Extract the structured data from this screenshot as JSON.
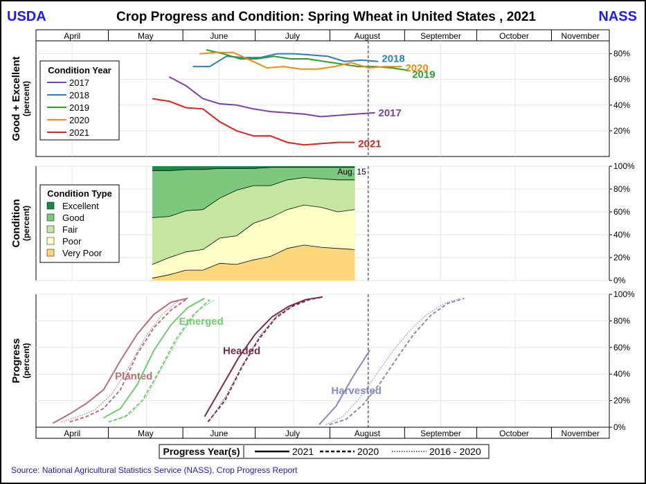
{
  "header": {
    "left_label": "USDA",
    "title": "Crop Progress and Condition: Spring Wheat in United States , 2021",
    "right_label": "NASS"
  },
  "months": [
    "April",
    "May",
    "June",
    "July",
    "August",
    "September",
    "October",
    "November"
  ],
  "source": "Source: National Agricultural Statistics Service (NASS), Crop Progress Report",
  "colors": {
    "header_text": "#1a1aff",
    "source_text": "#1a1acc",
    "cond_2017": "#7a3fa8",
    "cond_2018": "#2a7fc0",
    "cond_2019": "#2aa02a",
    "cond_2020": "#f08a10",
    "cond_2021": "#e02020",
    "excellent": "#1a8a4a",
    "good": "#7cc87c",
    "fair": "#c4e6a0",
    "poor": "#ffffc8",
    "very_poor": "#ffd77a",
    "planted": "#b87070",
    "emerged": "#70cc70",
    "headed": "#7a2a4a",
    "harvested": "#8888c0"
  },
  "chart_data": [
    {
      "type": "line",
      "panel": "good_excellent",
      "ylabel": "Good + Excellent",
      "ylabel_unit": "(percent)",
      "x_unit": "week",
      "y_ticks": [
        "80%",
        "60%",
        "40%",
        "20%"
      ],
      "y_tick_values": [
        80,
        60,
        40,
        20
      ],
      "ylim": [
        0,
        90
      ],
      "legend": {
        "title": "Condition Year",
        "placement": "top-left"
      },
      "series": [
        {
          "name": "2017",
          "color_key": "cond_2017",
          "end_label": "2017",
          "points": [
            [
              7.9,
              62
            ],
            [
              8.9,
              55
            ],
            [
              9.9,
              45
            ],
            [
              10.9,
              41
            ],
            [
              11.9,
              40
            ],
            [
              12.9,
              37
            ],
            [
              13.9,
              35
            ],
            [
              14.9,
              34
            ],
            [
              15.9,
              33
            ],
            [
              16.9,
              31
            ],
            [
              17.9,
              32
            ],
            [
              18.9,
              33
            ],
            [
              20.1,
              34
            ]
          ]
        },
        {
          "name": "2018",
          "color_key": "cond_2018",
          "end_label": "2018",
          "points": [
            [
              9.3,
              70
            ],
            [
              10.3,
              70
            ],
            [
              11.3,
              78
            ],
            [
              12.3,
              77
            ],
            [
              13.3,
              77
            ],
            [
              14.3,
              80
            ],
            [
              15.3,
              80
            ],
            [
              16.3,
              79
            ],
            [
              17.3,
              78
            ],
            [
              18.3,
              74
            ],
            [
              19.3,
              75
            ],
            [
              20.3,
              74
            ]
          ]
        },
        {
          "name": "2019",
          "color_key": "cond_2019",
          "end_label": "2019",
          "points": [
            [
              10.1,
              83
            ],
            [
              11.1,
              80
            ],
            [
              12.1,
              76
            ],
            [
              13.1,
              76
            ],
            [
              14.1,
              78
            ],
            [
              15.1,
              76
            ],
            [
              16.1,
              76
            ],
            [
              17.1,
              74
            ],
            [
              18.1,
              72
            ],
            [
              19.1,
              70
            ],
            [
              20.1,
              70
            ],
            [
              21.1,
              69
            ],
            [
              22.1,
              67
            ]
          ]
        },
        {
          "name": "2020",
          "color_key": "cond_2020",
          "end_label": "2020",
          "points": [
            [
              9.7,
              80
            ],
            [
              10.7,
              81
            ],
            [
              11.7,
              81
            ],
            [
              12.7,
              75
            ],
            [
              13.7,
              69
            ],
            [
              14.7,
              70
            ],
            [
              15.7,
              68
            ],
            [
              16.7,
              68
            ],
            [
              17.7,
              70
            ],
            [
              18.7,
              73
            ],
            [
              19.7,
              69
            ],
            [
              20.7,
              70
            ],
            [
              21.7,
              70
            ]
          ]
        },
        {
          "name": "2021",
          "color_key": "cond_2021",
          "end_label": "2021",
          "points": [
            [
              6.9,
              45
            ],
            [
              7.9,
              43
            ],
            [
              8.9,
              38
            ],
            [
              9.9,
              37
            ],
            [
              10.9,
              27
            ],
            [
              11.9,
              20
            ],
            [
              12.9,
              16
            ],
            [
              13.9,
              16
            ],
            [
              14.9,
              11
            ],
            [
              15.9,
              9
            ],
            [
              16.9,
              10
            ],
            [
              17.9,
              11
            ],
            [
              18.9,
              11
            ]
          ]
        }
      ]
    },
    {
      "type": "area",
      "panel": "condition",
      "ylabel": "Condition",
      "ylabel_unit": "(percent)",
      "x_unit": "week",
      "y_ticks": [
        "100%",
        "80%",
        "60%",
        "40%",
        "20%",
        "0%"
      ],
      "y_tick_values": [
        100,
        80,
        60,
        40,
        20,
        0
      ],
      "ylim": [
        0,
        100
      ],
      "annotation": "Aug. 15",
      "legend": {
        "title": "Condition Type",
        "placement": "top-left"
      },
      "x": [
        6.9,
        7.9,
        8.9,
        9.9,
        10.9,
        11.9,
        12.9,
        13.9,
        14.9,
        15.9,
        16.9,
        17.9,
        18.9
      ],
      "categories_order": [
        "Very Poor",
        "Poor",
        "Fair",
        "Good",
        "Excellent"
      ],
      "series": [
        {
          "name": "Excellent",
          "color_key": "excellent",
          "cumulative": [
            100,
            100,
            100,
            100,
            100,
            100,
            100,
            100,
            100,
            100,
            100,
            100,
            100
          ]
        },
        {
          "name": "Good",
          "color_key": "good",
          "cumulative": [
            96,
            96,
            97,
            97,
            98,
            98,
            98,
            99,
            99,
            99,
            99,
            99,
            99
          ]
        },
        {
          "name": "Fair",
          "color_key": "fair",
          "cumulative": [
            55,
            56,
            61,
            62,
            72,
            79,
            83,
            83,
            88,
            90,
            89,
            88,
            88
          ]
        },
        {
          "name": "Poor",
          "color_key": "poor",
          "cumulative": [
            14,
            20,
            25,
            27,
            37,
            39,
            50,
            55,
            62,
            66,
            64,
            60,
            62
          ]
        },
        {
          "name": "Very Poor",
          "color_key": "very_poor",
          "cumulative": [
            2,
            5,
            9,
            9,
            15,
            14,
            18,
            21,
            28,
            31,
            29,
            28,
            27
          ]
        }
      ]
    },
    {
      "type": "line",
      "panel": "progress",
      "ylabel": "Progress",
      "ylabel_unit": "(percent)",
      "x_unit": "week",
      "y_ticks": [
        "100%",
        "80%",
        "60%",
        "40%",
        "20%",
        "0%"
      ],
      "y_tick_values": [
        100,
        80,
        60,
        40,
        20,
        0
      ],
      "ylim": [
        0,
        100
      ],
      "legend": {
        "title": "Progress Year(s)",
        "placement": "bottom",
        "entries": [
          {
            "label": "2021",
            "style": "solid"
          },
          {
            "label": "2020",
            "style": "dashed"
          },
          {
            "label": "2016 - 2020",
            "style": "dotted"
          }
        ]
      },
      "groups": [
        {
          "name": "Planted",
          "color_key": "planted",
          "solid": [
            [
              1.0,
              3
            ],
            [
              2.0,
              10
            ],
            [
              3.0,
              18
            ],
            [
              4.0,
              28
            ],
            [
              5.0,
              50
            ],
            [
              6.0,
              70
            ],
            [
              7.0,
              85
            ],
            [
              8.0,
              94
            ],
            [
              9.0,
              97
            ]
          ],
          "dashed": [
            [
              2.0,
              4
            ],
            [
              3.0,
              8
            ],
            [
              4.0,
              14
            ],
            [
              5.0,
              28
            ],
            [
              6.0,
              55
            ],
            [
              7.0,
              75
            ],
            [
              8.0,
              88
            ],
            [
              9.0,
              97
            ]
          ],
          "dotted": [
            [
              1.5,
              4
            ],
            [
              2.5,
              8
            ],
            [
              3.5,
              13
            ],
            [
              4.5,
              25
            ],
            [
              5.5,
              45
            ],
            [
              6.5,
              68
            ],
            [
              7.5,
              85
            ],
            [
              8.5,
              96
            ]
          ]
        },
        {
          "name": "Emerged",
          "color_key": "emerged",
          "solid": [
            [
              4.0,
              7
            ],
            [
              5.0,
              14
            ],
            [
              6.0,
              32
            ],
            [
              7.0,
              58
            ],
            [
              8.0,
              77
            ],
            [
              9.0,
              90
            ],
            [
              10.0,
              97
            ]
          ],
          "dashed": [
            [
              4.3,
              4
            ],
            [
              5.3,
              8
            ],
            [
              6.3,
              20
            ],
            [
              7.3,
              42
            ],
            [
              8.3,
              66
            ],
            [
              9.3,
              84
            ],
            [
              10.3,
              96
            ]
          ],
          "dotted": [
            [
              4.6,
              5
            ],
            [
              5.6,
              10
            ],
            [
              6.6,
              24
            ],
            [
              7.6,
              48
            ],
            [
              8.6,
              70
            ],
            [
              9.6,
              88
            ],
            [
              10.6,
              96
            ]
          ]
        },
        {
          "name": "Headed",
          "color_key": "headed",
          "solid": [
            [
              10.0,
              8
            ],
            [
              11.0,
              30
            ],
            [
              12.0,
              52
            ],
            [
              13.0,
              70
            ],
            [
              14.0,
              83
            ],
            [
              15.0,
              91
            ],
            [
              16.0,
              96
            ],
            [
              17.0,
              98
            ]
          ],
          "dashed": [
            [
              10.2,
              4
            ],
            [
              11.2,
              20
            ],
            [
              12.2,
              45
            ],
            [
              13.2,
              66
            ],
            [
              14.2,
              82
            ],
            [
              15.2,
              91
            ],
            [
              16.2,
              96
            ],
            [
              17.0,
              98
            ]
          ],
          "dotted": [
            [
              10.3,
              5
            ],
            [
              11.3,
              24
            ],
            [
              12.3,
              48
            ],
            [
              13.3,
              69
            ],
            [
              14.3,
              84
            ],
            [
              15.3,
              92
            ],
            [
              16.3,
              97
            ]
          ]
        },
        {
          "name": "Harvested",
          "color_key": "harvested",
          "solid": [
            [
              16.8,
              2
            ],
            [
              17.8,
              16
            ],
            [
              18.8,
              38
            ],
            [
              19.8,
              58
            ]
          ],
          "dashed": [
            [
              17.4,
              2
            ],
            [
              18.4,
              6
            ],
            [
              19.4,
              17
            ],
            [
              20.4,
              33
            ],
            [
              21.4,
              52
            ],
            [
              22.4,
              70
            ],
            [
              23.4,
              84
            ],
            [
              24.4,
              93
            ],
            [
              25.4,
              97
            ]
          ],
          "dotted": [
            [
              17.2,
              2
            ],
            [
              18.2,
              8
            ],
            [
              19.2,
              22
            ],
            [
              20.2,
              40
            ],
            [
              21.2,
              58
            ],
            [
              22.2,
              73
            ],
            [
              23.2,
              85
            ],
            [
              24.2,
              93
            ],
            [
              25.2,
              97
            ]
          ]
        }
      ]
    }
  ]
}
